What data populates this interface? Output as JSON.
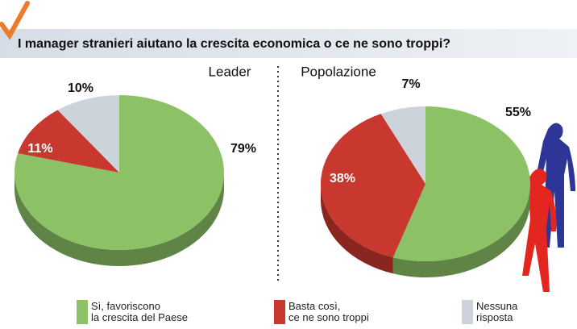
{
  "title": "I manager stranieri aiutano la crescita economica o ce ne sono troppi?",
  "chart_data": [
    {
      "type": "pie",
      "title": "Leader",
      "categories": [
        "Sì, favoriscono\nla crescita del Paese",
        "Basta così,\nce ne sono troppi",
        "Nessuna\nrisposta"
      ],
      "values": [
        79,
        11,
        10
      ],
      "value_labels": [
        "79%",
        "11%",
        "10%"
      ],
      "colors": [
        "#8cc265",
        "#c8382e",
        "#cdd3da"
      ]
    },
    {
      "type": "pie",
      "title": "Popolazione",
      "categories": [
        "Sì, favoriscono\nla crescita del Paese",
        "Basta così,\nce ne sono troppi",
        "Nessuna\nrisposta"
      ],
      "values": [
        55,
        38,
        7
      ],
      "value_labels": [
        "55%",
        "38%",
        "7%"
      ],
      "colors": [
        "#8cc265",
        "#c8382e",
        "#cdd3da"
      ]
    }
  ]
}
